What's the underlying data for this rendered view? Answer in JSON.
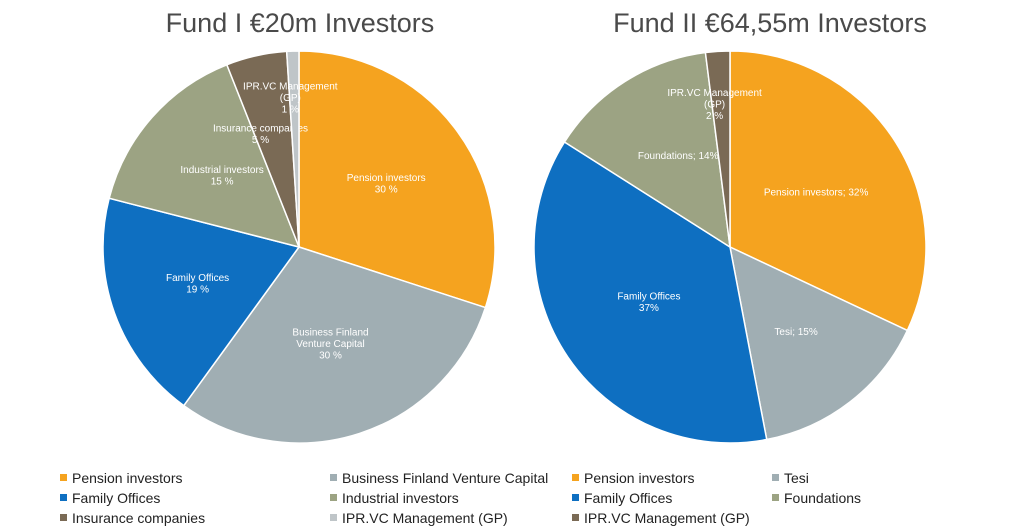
{
  "chart_data": [
    {
      "type": "pie",
      "title": "Fund I €20m Investors",
      "slices": [
        {
          "name": "Pension investors",
          "value": 30,
          "label_lines": [
            "Pension investors",
            "30 %"
          ],
          "color": "#F5A31F"
        },
        {
          "name": "Business Finland Venture Capital",
          "value": 30,
          "label_lines": [
            "Business Finland",
            "Venture Capital",
            "30 %"
          ],
          "color": "#A0AEB3"
        },
        {
          "name": "Family Offices",
          "value": 19,
          "label_lines": [
            "Family Offices",
            "19 %"
          ],
          "color": "#0E6FC1"
        },
        {
          "name": "Industrial investors",
          "value": 15,
          "label_lines": [
            "Industrial investors",
            "15 %"
          ],
          "color": "#9CA383"
        },
        {
          "name": "Insurance companies",
          "value": 5,
          "label_lines": [
            "Insurance companies",
            "5 %"
          ],
          "color": "#7A6A55"
        },
        {
          "name": "IPR.VC Management (GP)",
          "value": 1,
          "label_lines": [
            "IPR.VC Management",
            "(GP)",
            "1 %"
          ],
          "color": "#BFC5C8"
        }
      ],
      "legend": [
        "Pension investors",
        "Business Finland Venture Capital",
        "Family Offices",
        "Industrial investors",
        "Insurance companies",
        "IPR.VC Management (GP)"
      ]
    },
    {
      "type": "pie",
      "title": "Fund II €64,55m Investors",
      "slices": [
        {
          "name": "Pension investors",
          "value": 32,
          "label_lines": [
            "Pension investors; 32%"
          ],
          "color": "#F5A31F"
        },
        {
          "name": "Tesi",
          "value": 15,
          "label_lines": [
            "Tesi; 15%"
          ],
          "color": "#A0AEB3"
        },
        {
          "name": "Family Offices",
          "value": 37,
          "label_lines": [
            "Family Offices",
            "37%"
          ],
          "color": "#0E6FC1"
        },
        {
          "name": "Foundations",
          "value": 14,
          "label_lines": [
            "Foundations; 14%"
          ],
          "color": "#9CA383"
        },
        {
          "name": "IPR.VC Management (GP)",
          "value": 2,
          "label_lines": [
            "IPR.VC Management",
            "(GP)",
            "2 %"
          ],
          "color": "#7A6A55"
        }
      ],
      "legend": [
        "Pension investors",
        "Tesi",
        "Family Offices",
        "Foundations",
        "IPR.VC Management (GP)"
      ]
    }
  ]
}
